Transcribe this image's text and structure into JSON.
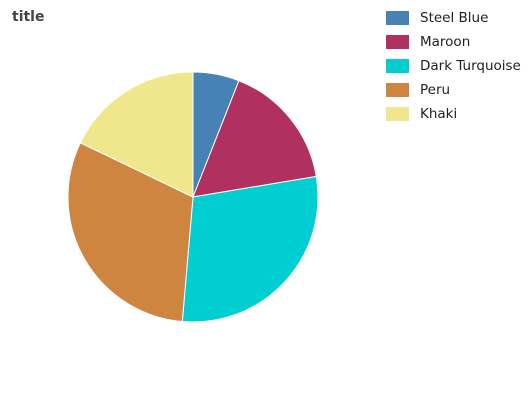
{
  "chart_data": {
    "type": "pie",
    "title": "title",
    "categories": [
      "Steel Blue",
      "Maroon",
      "Dark Turquoise",
      "Peru",
      "Khaki"
    ],
    "values": [
      5.7,
      15.6,
      27.6,
      29.3,
      17.0
    ],
    "colors": [
      "#4682B4",
      "#B03060",
      "#00CED1",
      "#CD853F",
      "#F0E68C"
    ],
    "start_angle_deg": 0,
    "direction": "clockwise",
    "legend_position": "right",
    "labels": []
  }
}
